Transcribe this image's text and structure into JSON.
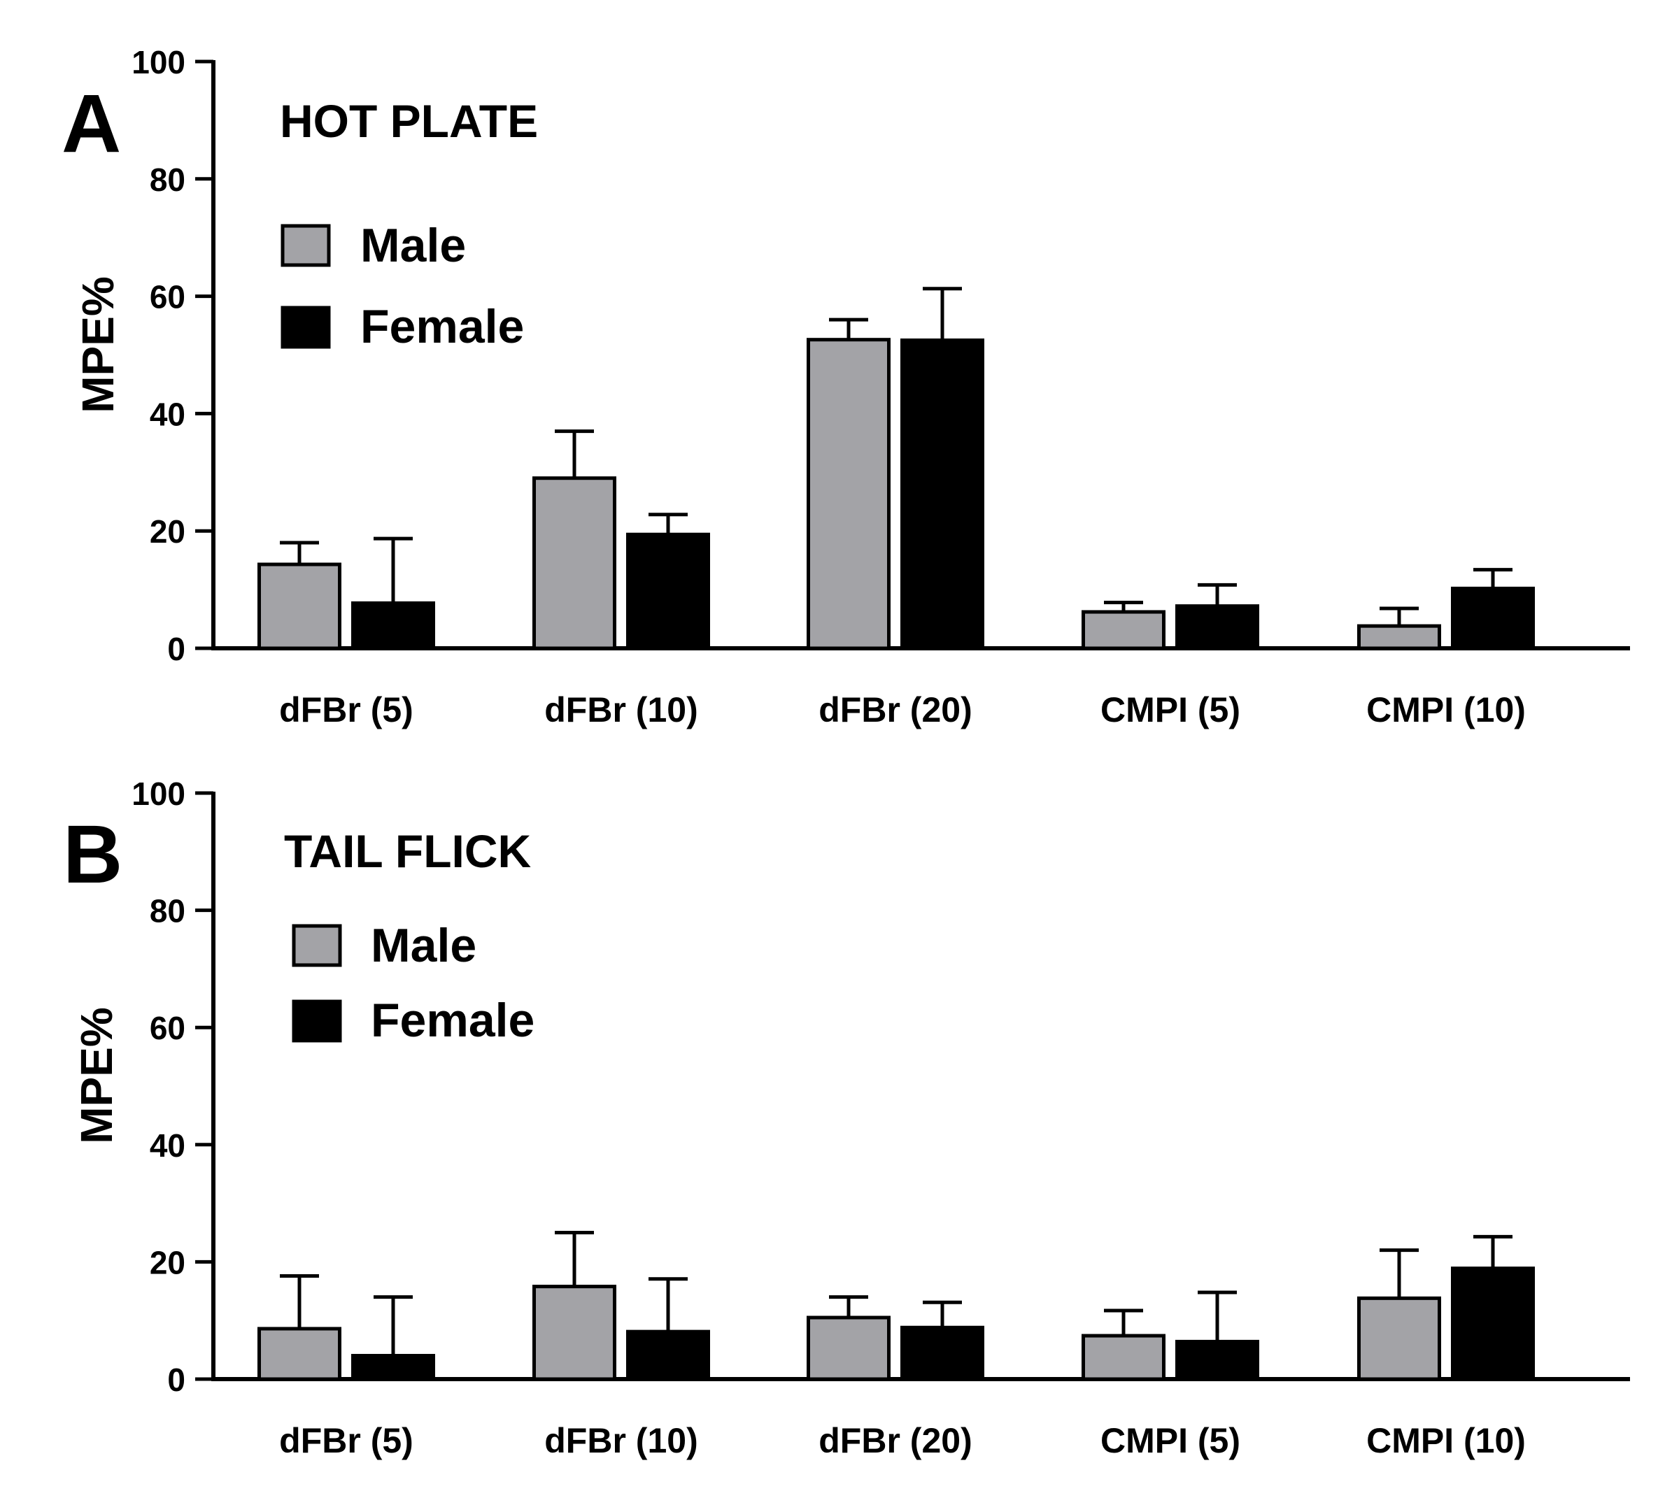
{
  "colors": {
    "male": "#a3a3a7",
    "female": "#000000",
    "axis": "#000000"
  },
  "chart_data": [
    {
      "type": "bar",
      "panel_label": "A",
      "title": "HOT PLATE",
      "xlabel": "",
      "ylabel": "MPE%",
      "ylim": [
        0,
        100
      ],
      "yticks": [
        0,
        20,
        40,
        60,
        80,
        100
      ],
      "categories": [
        "dFBr (5)",
        "dFBr (10)",
        "dFBr (20)",
        "CMPI (5)",
        "CMPI (10)"
      ],
      "legend_position": "top-left",
      "series": [
        {
          "name": "Male",
          "color_key": "male",
          "values": [
            14.3,
            29.0,
            52.6,
            6.2,
            3.8
          ],
          "errors": [
            3.7,
            8.0,
            3.4,
            1.6,
            3.0
          ]
        },
        {
          "name": "Female",
          "color_key": "female",
          "values": [
            7.7,
            19.4,
            52.5,
            7.2,
            10.2
          ],
          "errors": [
            11.0,
            3.4,
            8.8,
            3.6,
            3.2
          ]
        }
      ]
    },
    {
      "type": "bar",
      "panel_label": "B",
      "title": "TAIL FLICK",
      "xlabel": "",
      "ylabel": "MPE%",
      "ylim": [
        0,
        100
      ],
      "yticks": [
        0,
        20,
        40,
        60,
        80,
        100
      ],
      "categories": [
        "dFBr (5)",
        "dFBr (10)",
        "dFBr (20)",
        "CMPI (5)",
        "CMPI (10)"
      ],
      "legend_position": "top-left",
      "series": [
        {
          "name": "Male",
          "color_key": "male",
          "values": [
            8.6,
            15.8,
            10.5,
            7.4,
            13.8
          ],
          "errors": [
            9.0,
            9.2,
            3.5,
            4.3,
            8.2
          ]
        },
        {
          "name": "Female",
          "color_key": "female",
          "values": [
            4.0,
            8.1,
            8.8,
            6.4,
            18.9
          ],
          "errors": [
            10.0,
            9.0,
            4.3,
            8.4,
            5.4
          ]
        }
      ]
    }
  ]
}
